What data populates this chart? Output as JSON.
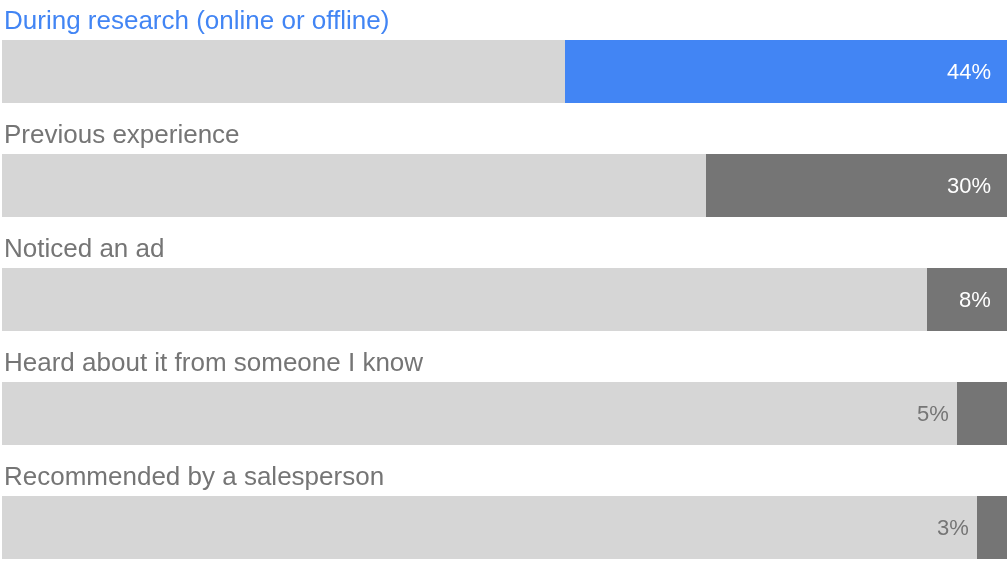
{
  "chart_data": {
    "type": "bar",
    "orientation": "horizontal",
    "categories": [
      "During research (online or offline)",
      "Previous experience",
      "Noticed an ad",
      "Heard about it from someone I know",
      "Recommended by a salesperson"
    ],
    "values": [
      44,
      30,
      8,
      5,
      3
    ],
    "colors": [
      "#4285f4",
      "#757575",
      "#757575",
      "#757575",
      "#757575"
    ],
    "value_labels": [
      "44%",
      "30%",
      "8%",
      "5%",
      "3%"
    ],
    "xlim": [
      100,
      0
    ],
    "grid": false
  }
}
